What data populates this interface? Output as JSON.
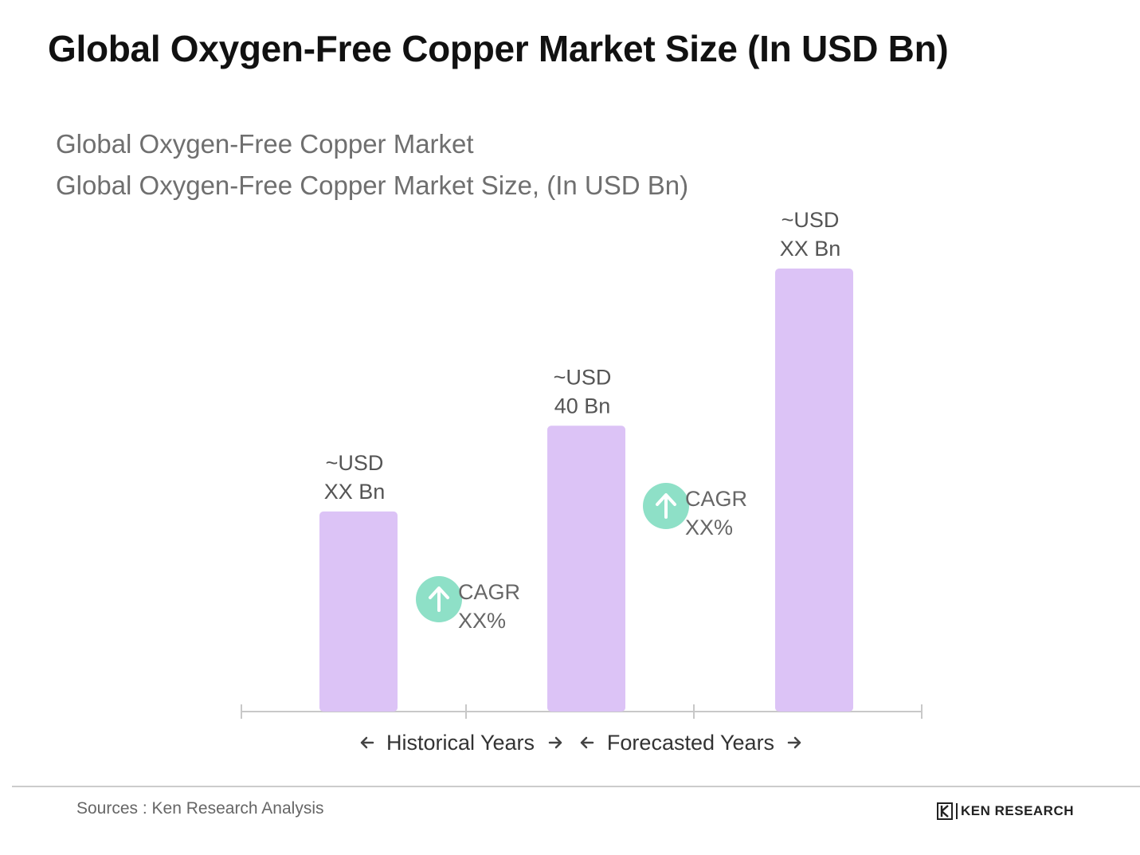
{
  "header": {
    "title": "Global Oxygen-Free Copper Market Size (In USD Bn)"
  },
  "chart_data": {
    "type": "bar",
    "subtitle_lines": [
      "Global Oxygen-Free Copper Market",
      "Global Oxygen-Free Copper Market Size, (In USD Bn)"
    ],
    "bar_color": "#dcc3f6",
    "cagr_color": "#8ee0c7",
    "axis_color": "#c8c8c8",
    "values": [
      28,
      40,
      62
    ],
    "data_labels": [
      [
        "~USD",
        "XX Bn"
      ],
      [
        "~USD",
        "40 Bn"
      ],
      [
        "~USD",
        "XX Bn"
      ]
    ],
    "cagr_annotations": [
      {
        "between": [
          0,
          1
        ],
        "lines": [
          "CAGR",
          "XX%"
        ]
      },
      {
        "between": [
          1,
          2
        ],
        "lines": [
          "CAGR",
          "XX%"
        ]
      }
    ],
    "period_labels": [
      "Historical Years",
      "Forecasted Years"
    ],
    "grid": false,
    "legend": "none"
  },
  "footer": {
    "source": "Sources : Ken Research Analysis",
    "logo_text": "KEN RESEARCH"
  }
}
